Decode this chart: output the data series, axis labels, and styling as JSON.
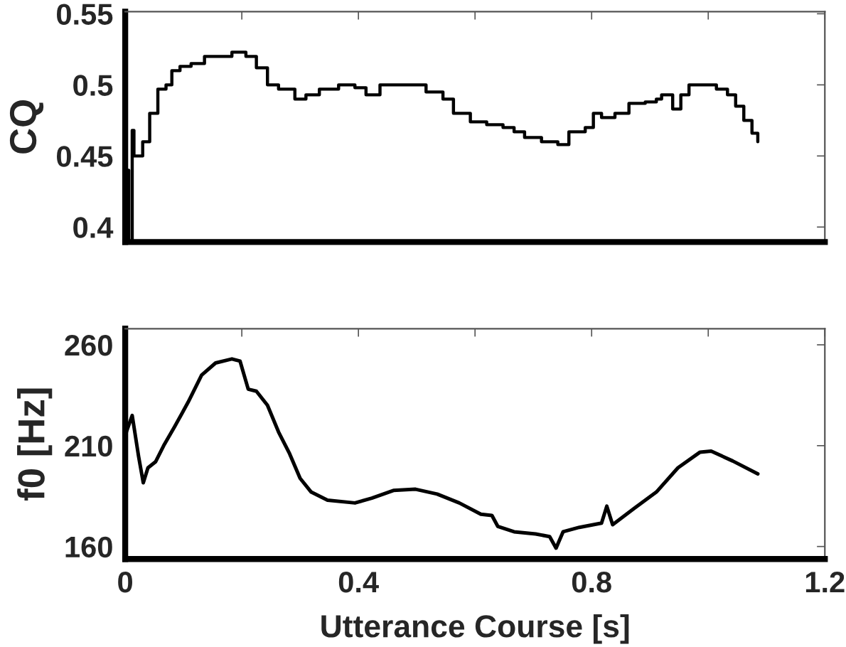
{
  "chart_data": [
    {
      "type": "step",
      "ylabel": "CQ",
      "xlim": [
        0,
        1.2
      ],
      "ylim": [
        0.3895,
        0.5515
      ],
      "xticks": [
        {
          "value": 0,
          "label": null
        },
        {
          "value": 0.2,
          "label": null
        },
        {
          "value": 0.4,
          "label": null
        },
        {
          "value": 0.6,
          "label": null
        },
        {
          "value": 0.8,
          "label": null
        },
        {
          "value": 1.0,
          "label": null
        },
        {
          "value": 1.2,
          "label": null
        }
      ],
      "yticks": [
        0.4,
        0.45,
        0.5,
        0.55
      ],
      "tick_labels": "y",
      "grid": false,
      "series": [
        {
          "color": "#000000",
          "x": [
            0.0,
            0.002,
            0.006,
            0.012,
            0.015,
            0.019,
            0.03,
            0.042,
            0.056,
            0.07,
            0.08,
            0.094,
            0.113,
            0.136,
            0.16,
            0.183,
            0.207,
            0.225,
            0.244,
            0.263,
            0.291,
            0.31,
            0.333,
            0.366,
            0.394,
            0.413,
            0.437,
            0.498,
            0.516,
            0.545,
            0.563,
            0.592,
            0.62,
            0.648,
            0.667,
            0.685,
            0.714,
            0.742,
            0.761,
            0.789,
            0.803,
            0.817,
            0.84,
            0.864,
            0.892,
            0.911,
            0.92,
            0.939,
            0.953,
            0.967,
            0.995,
            1.014,
            1.033,
            1.047,
            1.061,
            1.075,
            1.085
          ],
          "values": [
            0.44,
            0.44,
            0.39,
            0.468,
            0.45,
            0.45,
            0.46,
            0.48,
            0.497,
            0.5,
            0.51,
            0.513,
            0.515,
            0.52,
            0.52,
            0.523,
            0.52,
            0.512,
            0.5,
            0.497,
            0.49,
            0.493,
            0.497,
            0.5,
            0.498,
            0.493,
            0.5,
            0.5,
            0.495,
            0.49,
            0.48,
            0.474,
            0.472,
            0.47,
            0.467,
            0.463,
            0.46,
            0.458,
            0.467,
            0.47,
            0.48,
            0.477,
            0.48,
            0.487,
            0.488,
            0.49,
            0.493,
            0.483,
            0.493,
            0.5,
            0.5,
            0.497,
            0.493,
            0.485,
            0.475,
            0.466,
            0.46
          ]
        }
      ]
    },
    {
      "type": "line",
      "xlabel": "Utterance Course [s]",
      "ylabel": "f0 [Hz]",
      "xlim": [
        0,
        1.2
      ],
      "ylim": [
        153.8,
        268
      ],
      "xticks": [
        0,
        {
          "value": 0.2,
          "label": null
        },
        0.4,
        {
          "value": 0.6,
          "label": null
        },
        0.8,
        {
          "value": 1.0,
          "label": null
        },
        1.2
      ],
      "yticks": [
        160,
        210,
        260
      ],
      "grid": false,
      "series": [
        {
          "color": "#000000",
          "x": [
            0.0,
            0.002,
            0.012,
            0.023,
            0.031,
            0.039,
            0.052,
            0.066,
            0.085,
            0.108,
            0.131,
            0.155,
            0.183,
            0.197,
            0.211,
            0.225,
            0.244,
            0.263,
            0.282,
            0.3,
            0.319,
            0.347,
            0.394,
            0.423,
            0.46,
            0.498,
            0.535,
            0.573,
            0.61,
            0.629,
            0.639,
            0.667,
            0.704,
            0.728,
            0.739,
            0.751,
            0.779,
            0.817,
            0.826,
            0.836,
            0.873,
            0.911,
            0.948,
            0.986,
            1.005,
            1.042,
            1.085
          ],
          "values": [
            213,
            216.8,
            225,
            204.6,
            191.6,
            199,
            202,
            210,
            219.5,
            231.6,
            245,
            251,
            253,
            251.9,
            238,
            237,
            230,
            216.8,
            206,
            193.8,
            187,
            183,
            181.6,
            184,
            187.8,
            188.4,
            186,
            181.6,
            176,
            175.4,
            170,
            167.3,
            166.2,
            164.9,
            159.2,
            167.3,
            169.5,
            171.6,
            180,
            170.8,
            178.9,
            187,
            199,
            206.8,
            207.3,
            202.4,
            196
          ]
        }
      ]
    }
  ]
}
